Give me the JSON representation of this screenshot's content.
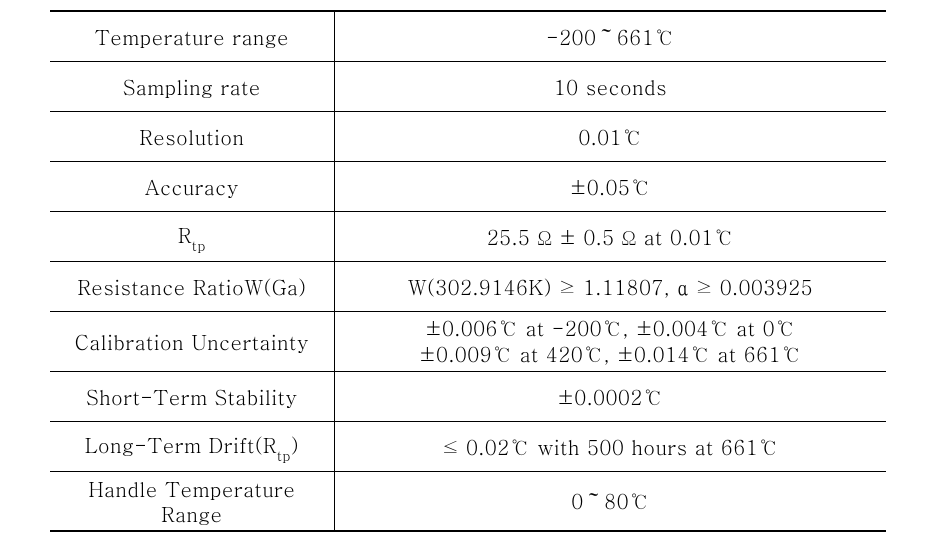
{
  "table": {
    "background_color": "#ffffff",
    "text_color": "#000000",
    "border_color": "#000000",
    "outer_border_width": 2,
    "inner_border_width": 1,
    "font_family": "Batang, Times New Roman, serif",
    "font_size": 20,
    "sub_font_size": 14,
    "rows": [
      {
        "label_html": "Temperature range",
        "value_html": "-200～661℃"
      },
      {
        "label_html": "Sampling rate",
        "value_html": "10 seconds"
      },
      {
        "label_html": "Resolution",
        "value_html": "0.01℃"
      },
      {
        "label_html": "Accuracy",
        "value_html": "±0.05℃"
      },
      {
        "label_html": "R<span class=\"sub\">tp</span>",
        "value_html": "25.5 Ω ± 0.5 Ω at 0.01℃"
      },
      {
        "label_html": "Resistance RatioW(Ga)",
        "value_html": "W(302.9146K) ≥ 1.11807, α ≥ 0.003925"
      },
      {
        "label_html": "Calibration Uncertainty",
        "value_html": "<div class=\"multi-line\">±0.006℃ at -200℃, ±0.004℃ at 0℃<br>±0.009℃ at 420℃, ±0.014℃ at 661℃</div>",
        "tall": true
      },
      {
        "label_html": "Short-Term Stability",
        "value_html": "±0.0002℃"
      },
      {
        "label_html": "Long-Term Drift(R<span class=\"sub\">tp</span>)",
        "value_html": "≤ 0.02℃ with 500 hours at 661℃"
      },
      {
        "label_html": "<div class=\"narrow-label\">Handle Temperature<br>Range</div>",
        "value_html": "0～80℃",
        "tall": true
      }
    ]
  }
}
